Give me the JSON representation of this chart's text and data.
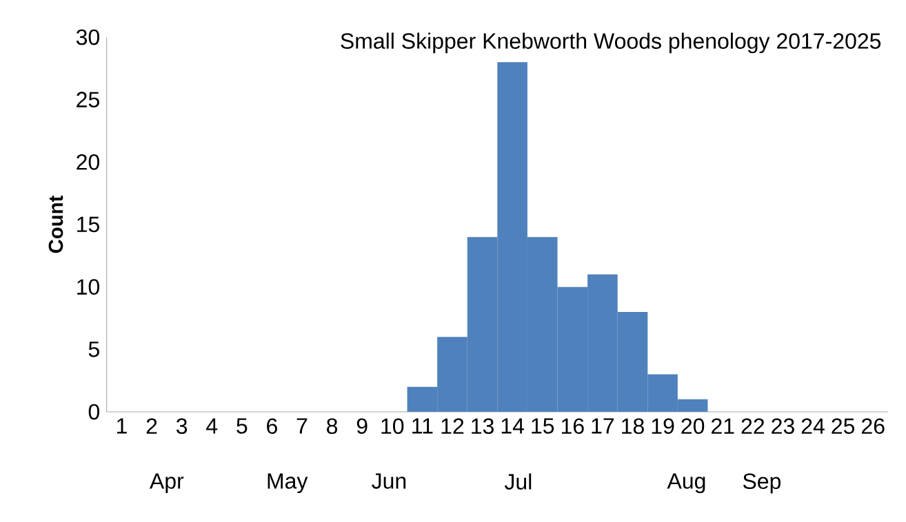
{
  "chart_data": {
    "type": "bar",
    "title": "Small Skipper Knebworth Woods phenology 2017-2025",
    "ylabel": "Count",
    "categories": [
      "1",
      "2",
      "3",
      "4",
      "5",
      "6",
      "7",
      "8",
      "9",
      "10",
      "11",
      "12",
      "13",
      "14",
      "15",
      "16",
      "17",
      "18",
      "19",
      "20",
      "21",
      "22",
      "23",
      "24",
      "25",
      "26"
    ],
    "values": [
      0,
      0,
      0,
      0,
      0,
      0,
      0,
      0,
      0,
      0,
      2,
      6,
      14,
      28,
      14,
      10,
      11,
      8,
      3,
      1,
      0,
      0,
      0,
      0,
      0,
      0
    ],
    "color": "#4f81bd",
    "ylim": [
      0,
      30
    ],
    "yticks": [
      0,
      5,
      10,
      15,
      20,
      25,
      30
    ],
    "annotations": [
      "Apr",
      "May",
      "Jun",
      "Jul",
      "Aug",
      "Sep"
    ]
  }
}
